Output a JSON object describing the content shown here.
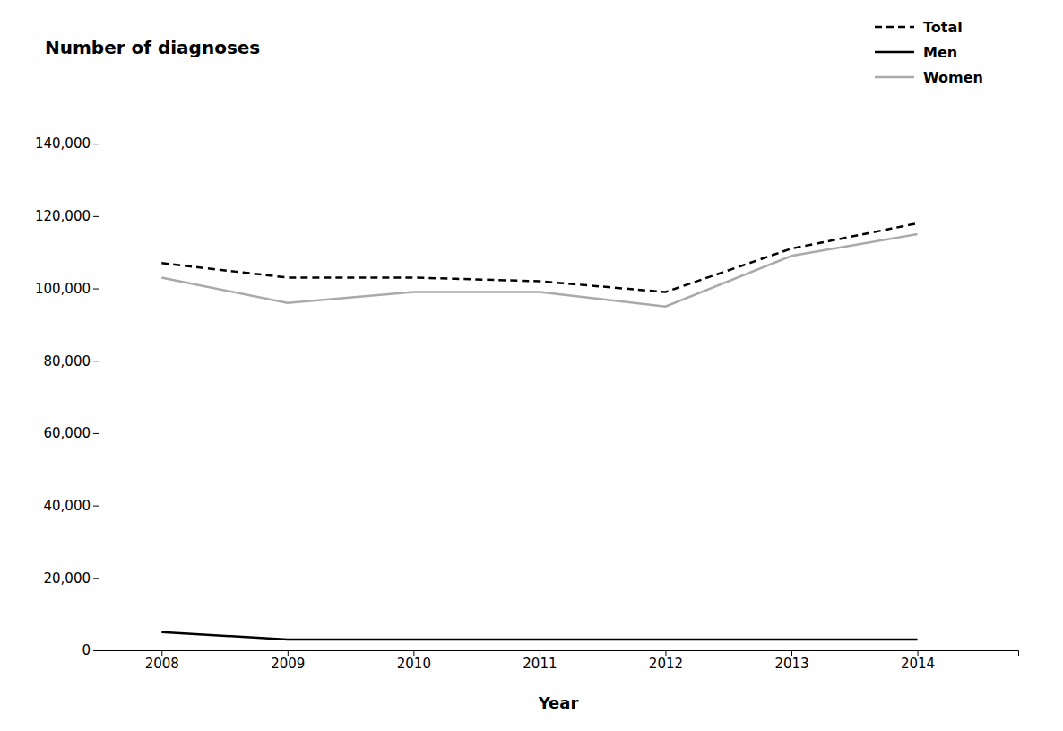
{
  "chart_data": {
    "type": "line",
    "ylabel": "Number of diagnoses",
    "xlabel": "Year",
    "x": [
      2008,
      2009,
      2010,
      2011,
      2012,
      2013,
      2014
    ],
    "series": [
      {
        "name": "Total",
        "color": "#000000",
        "line_style": "dashed",
        "values": [
          107000,
          103000,
          103000,
          102000,
          99000,
          111000,
          118000
        ]
      },
      {
        "name": "Men",
        "color": "#000000",
        "line_style": "solid",
        "values": [
          5000,
          3000,
          3000,
          3000,
          3000,
          3000,
          3000
        ]
      },
      {
        "name": "Women",
        "color": "#aaaaaa",
        "line_style": "solid",
        "values": [
          103000,
          96000,
          99000,
          99000,
          95000,
          109000,
          115000
        ]
      }
    ],
    "xlim": [
      2007.5,
      2014.8
    ],
    "xticks": [
      2008,
      2009,
      2010,
      2011,
      2012,
      2013,
      2014
    ],
    "ylim": [
      0,
      145000
    ],
    "yticks": [
      0,
      {
        "value": 20000,
        "label": "20,000"
      },
      {
        "value": 40000,
        "label": "40,000"
      },
      {
        "value": 60000,
        "label": "60,000"
      },
      {
        "value": 80000,
        "label": "80,000"
      },
      {
        "value": 100000,
        "label": "100,000"
      },
      {
        "value": 120000,
        "label": "120,000"
      },
      {
        "value": 140000,
        "label": "140,000"
      }
    ],
    "grid": false,
    "legend": "upper right"
  }
}
